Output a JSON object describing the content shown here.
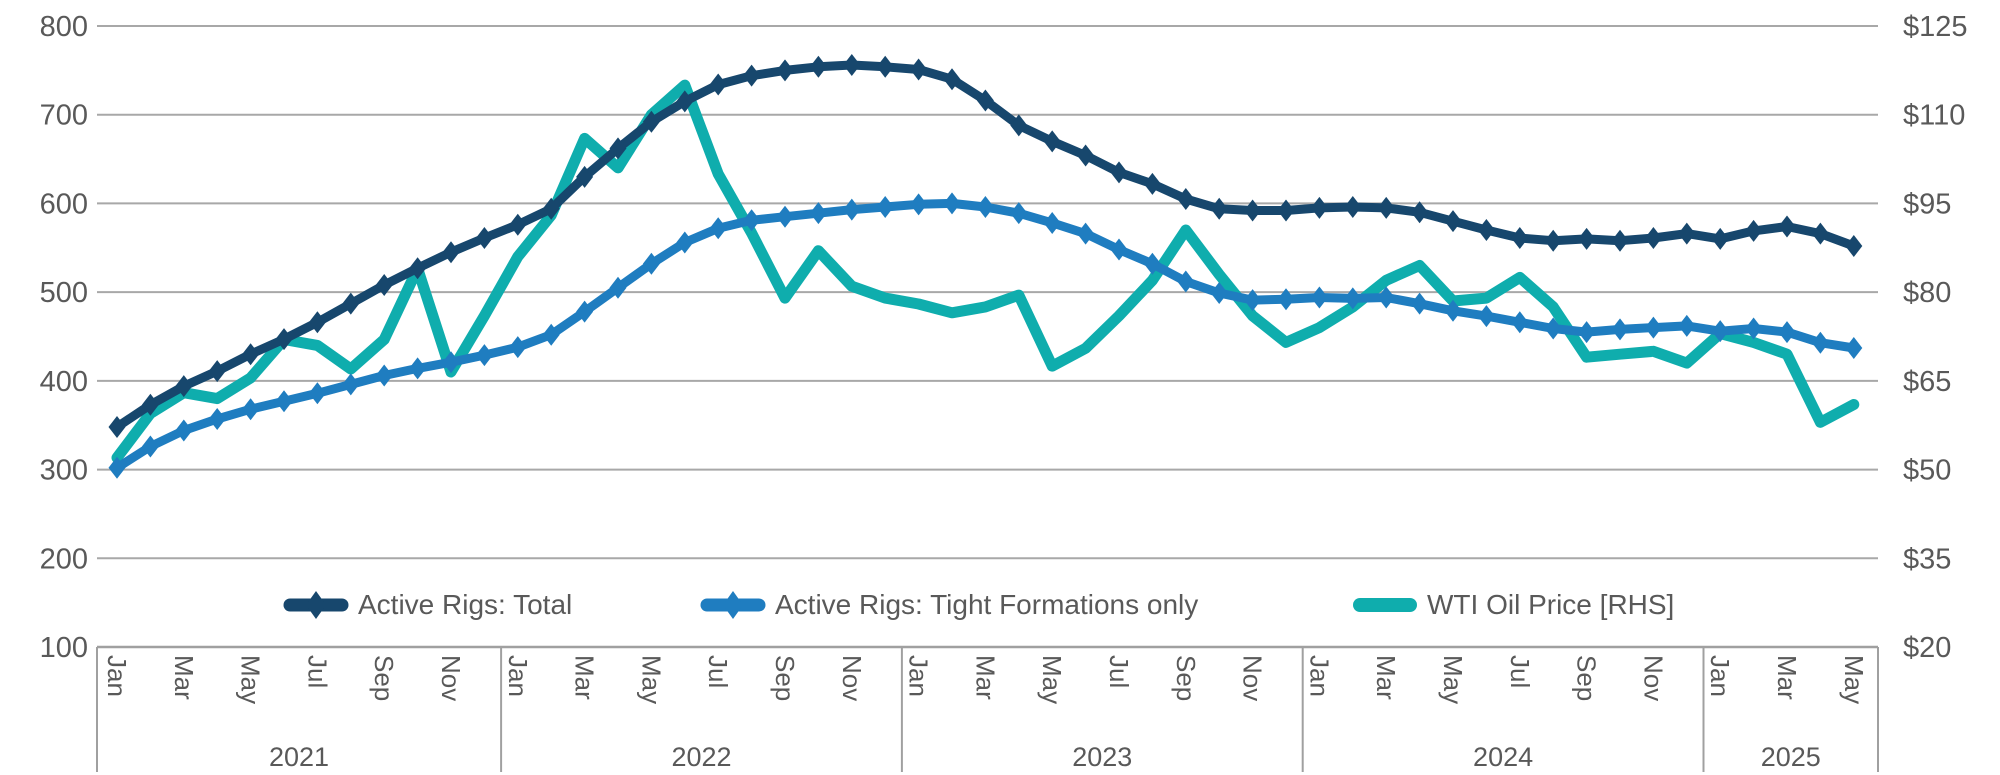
{
  "chart_title": "",
  "legend": [
    {
      "label": "Active Rigs: Total",
      "color": "#17476d",
      "marker": "diamond"
    },
    {
      "label": "Active Rigs: Tight Formations only",
      "color": "#1f7dc0",
      "marker": "diamond"
    },
    {
      "label": "WTI Oil Price [RHS]",
      "color": "#0fadad",
      "marker": "line"
    }
  ],
  "left_axis": {
    "ticks": [
      800,
      700,
      600,
      500,
      400,
      300,
      200,
      100
    ]
  },
  "right_axis": {
    "ticks": [
      "$125",
      "$110",
      "$95",
      "$80",
      "$65",
      "$50",
      "$35",
      "$20"
    ]
  },
  "x_axis": {
    "years": [
      {
        "label": "2021",
        "months": [
          "Jan",
          "Mar",
          "May",
          "Jul",
          "Sep",
          "Nov"
        ]
      },
      {
        "label": "2022",
        "months": [
          "Jan",
          "Mar",
          "May",
          "Jul",
          "Sep",
          "Nov"
        ]
      },
      {
        "label": "2023",
        "months": [
          "Jan",
          "Mar",
          "May",
          "Jul",
          "Sep",
          "Nov"
        ]
      },
      {
        "label": "2024",
        "months": [
          "Jan",
          "Mar",
          "May",
          "Jul",
          "Sep",
          "Nov"
        ]
      },
      {
        "label": "2025",
        "months": [
          "Jan",
          "Mar",
          "May"
        ]
      }
    ]
  },
  "chart_data": {
    "type": "line",
    "frequency": "monthly",
    "start": "2021-01",
    "end": "2025-05",
    "left_ylim": [
      100,
      800
    ],
    "right_ylim": [
      20,
      125
    ],
    "grid": "horizontal",
    "legend_position": "bottom",
    "series": [
      {
        "name": "Active Rigs: Total",
        "axis": "left",
        "color": "#17476d",
        "marker": "diamond",
        "values": [
          348,
          373,
          394,
          411,
          430,
          447,
          466,
          487,
          508,
          527,
          545,
          561,
          576,
          594,
          630,
          662,
          692,
          715,
          734,
          744,
          750,
          754,
          756,
          754,
          751,
          740,
          716,
          688,
          670,
          654,
          635,
          622,
          605,
          594,
          592,
          592,
          595,
          596,
          595,
          590,
          580,
          570,
          561,
          558,
          560,
          558,
          561,
          566,
          560,
          569,
          574,
          566,
          552
        ]
      },
      {
        "name": "Active Rigs: Tight Formations only",
        "axis": "left",
        "color": "#1f7dc0",
        "marker": "diamond",
        "values": [
          302,
          326,
          344,
          357,
          368,
          377,
          386,
          396,
          406,
          414,
          421,
          429,
          438,
          452,
          478,
          505,
          532,
          556,
          572,
          581,
          585,
          589,
          593,
          596,
          599,
          600,
          596,
          589,
          578,
          566,
          548,
          532,
          512,
          499,
          491,
          492,
          494,
          493,
          494,
          487,
          479,
          473,
          466,
          459,
          455,
          458,
          460,
          462,
          456,
          459,
          455,
          443,
          437
        ]
      },
      {
        "name": "WTI Oil Price [RHS]",
        "axis": "right",
        "color": "#0fadad",
        "marker": "none",
        "values": [
          52,
          59.5,
          63,
          62,
          65.5,
          72,
          71,
          67,
          72,
          84,
          66.5,
          76,
          86,
          93,
          106,
          101,
          110,
          115,
          100,
          90,
          79,
          87,
          81,
          79,
          78,
          76.5,
          77.5,
          79.5,
          67.5,
          70.5,
          76,
          82,
          90.5,
          83,
          76,
          71.5,
          74,
          77.5,
          82,
          84.5,
          78.5,
          79,
          82.5,
          77.5,
          69,
          69.5,
          70,
          68,
          73,
          71.5,
          69.5,
          58,
          61
        ]
      }
    ]
  },
  "style": {
    "grid_color": "#a8a8a8",
    "axis_text_color": "#595959",
    "panel_border_color": "#a0a0a0"
  }
}
